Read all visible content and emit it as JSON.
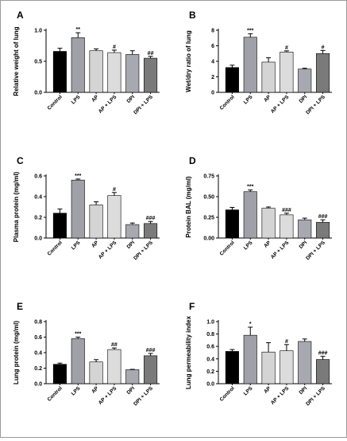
{
  "figure_border_color": "#9a9a9a",
  "chart_data": [
    {
      "type": "bar",
      "panel_label": "A",
      "ylabel": "Relative weight of lung",
      "categories": [
        "Control",
        "LPS",
        "AP",
        "AP + LPS",
        "DPI",
        "DPI + LPS"
      ],
      "values": [
        0.66,
        0.88,
        0.67,
        0.64,
        0.61,
        0.55
      ],
      "errors": [
        0.05,
        0.08,
        0.03,
        0.04,
        0.06,
        0.03
      ],
      "significance": [
        "",
        "**",
        "",
        "#",
        "",
        "##"
      ],
      "ylim": [
        0,
        1.0
      ],
      "yticks": [
        "0.0",
        "0.5",
        "1.0"
      ],
      "grid": false,
      "bar_colors": [
        "#000000",
        "#a0a0a8",
        "#d4d4d4",
        "#dcdcdc",
        "#a8a8b0",
        "#7a7a7a"
      ]
    },
    {
      "type": "bar",
      "panel_label": "B",
      "ylabel": "Wet/dry ratio of lung",
      "categories": [
        "Control",
        "LPS",
        "AP",
        "AP + LPS",
        "DPI",
        "DPI + LPS"
      ],
      "values": [
        3.2,
        7.1,
        3.9,
        5.2,
        3.0,
        5.0
      ],
      "errors": [
        0.3,
        0.45,
        0.55,
        0.15,
        0.1,
        0.4
      ],
      "significance": [
        "",
        "***",
        "",
        "#",
        "",
        "#"
      ],
      "ylim": [
        0,
        8
      ],
      "yticks": [
        "0",
        "2",
        "4",
        "6",
        "8"
      ],
      "grid": false,
      "bar_colors": [
        "#000000",
        "#a0a0a8",
        "#d4d4d4",
        "#dcdcdc",
        "#a8a8b0",
        "#7a7a7a"
      ]
    },
    {
      "type": "bar",
      "panel_label": "C",
      "ylabel": "Plasma protein (mg/ml)",
      "categories": [
        "Control",
        "LPS",
        "AP",
        "AP + LPS",
        "DPI",
        "DPI + LPS"
      ],
      "values": [
        0.24,
        0.56,
        0.32,
        0.41,
        0.13,
        0.14
      ],
      "errors": [
        0.04,
        0.01,
        0.03,
        0.03,
        0.015,
        0.02
      ],
      "significance": [
        "",
        "***",
        "",
        "#",
        "",
        "###"
      ],
      "ylim": [
        0,
        0.6
      ],
      "yticks": [
        "0.0",
        "0.2",
        "0.4",
        "0.6"
      ],
      "grid": false,
      "bar_colors": [
        "#000000",
        "#a0a0a8",
        "#d4d4d4",
        "#dcdcdc",
        "#a8a8b0",
        "#7a7a7a"
      ]
    },
    {
      "type": "bar",
      "panel_label": "D",
      "ylabel": "Protein BAL (mg/ml)",
      "categories": [
        "Control",
        "LPS",
        "AP",
        "AP + LPS",
        "DPI",
        "DPI + LPS"
      ],
      "values": [
        0.34,
        0.56,
        0.36,
        0.28,
        0.22,
        0.19
      ],
      "errors": [
        0.03,
        0.02,
        0.015,
        0.02,
        0.02,
        0.03
      ],
      "significance": [
        "",
        "***",
        "",
        "###",
        "",
        "###"
      ],
      "ylim": [
        0,
        0.75
      ],
      "yticks": [
        "0.00",
        "0.25",
        "0.50",
        "0.75"
      ],
      "grid": false,
      "bar_colors": [
        "#000000",
        "#a0a0a8",
        "#d4d4d4",
        "#dcdcdc",
        "#a8a8b0",
        "#7a7a7a"
      ]
    },
    {
      "type": "bar",
      "panel_label": "E",
      "ylabel": "Lung protein (mg/ml)",
      "categories": [
        "Control",
        "LPS",
        "AP",
        "AP + LPS",
        "DPI",
        "DPI + LPS"
      ],
      "values": [
        0.25,
        0.58,
        0.28,
        0.44,
        0.18,
        0.36
      ],
      "errors": [
        0.015,
        0.02,
        0.03,
        0.02,
        0.005,
        0.03
      ],
      "significance": [
        "",
        "***",
        "",
        "##",
        "",
        "###"
      ],
      "ylim": [
        0,
        0.8
      ],
      "yticks": [
        "0.0",
        "0.2",
        "0.4",
        "0.6",
        "0.8"
      ],
      "grid": false,
      "bar_colors": [
        "#000000",
        "#a0a0a8",
        "#d4d4d4",
        "#dcdcdc",
        "#a8a8b0",
        "#7a7a7a"
      ]
    },
    {
      "type": "bar",
      "panel_label": "F",
      "ylabel": "Lung permeability index",
      "categories": [
        "Control",
        "LPS",
        "AP",
        "AP + LPS",
        "DPI",
        "DPI + LPS"
      ],
      "values": [
        0.52,
        0.78,
        0.51,
        0.53,
        0.68,
        0.39
      ],
      "errors": [
        0.03,
        0.13,
        0.15,
        0.1,
        0.04,
        0.05
      ],
      "significance": [
        "",
        "*",
        "",
        "#",
        "",
        "###"
      ],
      "ylim": [
        0,
        1.0
      ],
      "yticks": [
        "0.0",
        "0.2",
        "0.4",
        "0.6",
        "0.8",
        "1.0"
      ],
      "grid": false,
      "bar_colors": [
        "#000000",
        "#a0a0a8",
        "#d4d4d4",
        "#dcdcdc",
        "#a8a8b0",
        "#7a7a7a"
      ]
    }
  ]
}
